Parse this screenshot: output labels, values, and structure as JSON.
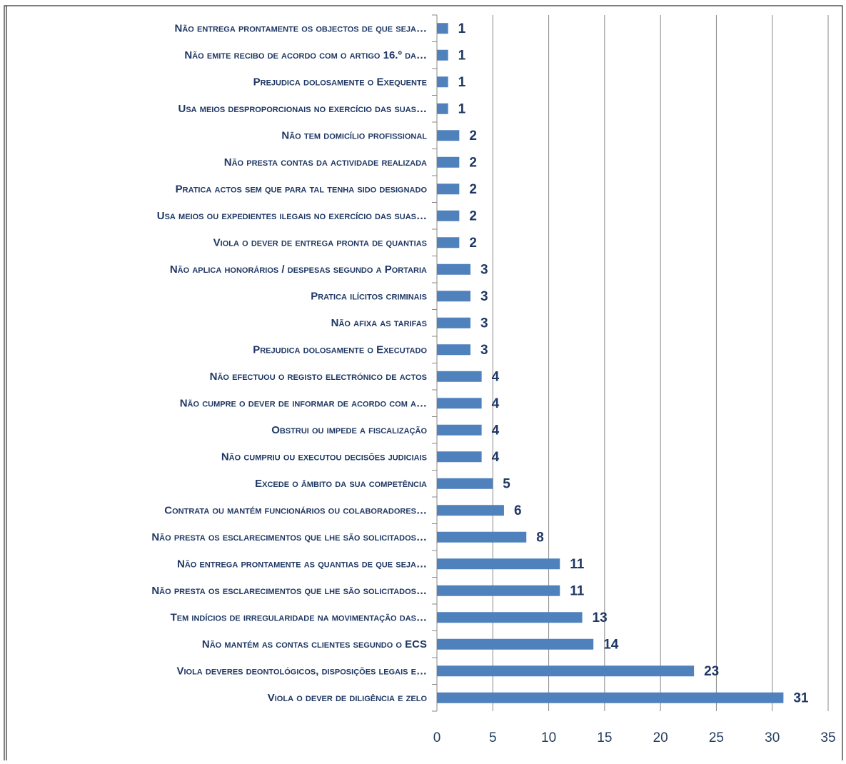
{
  "chart_data": {
    "type": "bar",
    "orientation": "horizontal",
    "categories": [
      "Não entrega prontamente os objectos de que seja…",
      "Não emite recibo de acordo com o  artigo 16.º da…",
      "Prejudica dolosamente o Exequente",
      "Usa meios desproporcionais no exercício das suas…",
      "Não tem domicílio profissional",
      "Não presta contas da actividade realizada",
      "Pratica actos sem que para tal tenha sido designado",
      "Usa meios ou expedientes ilegais no exercício das suas…",
      "Viola o dever de entrega pronta de quantias",
      "Não aplica honorários / despesas segundo a Portaria",
      "Pratica ilícitos criminais",
      "Não afixa as tarifas",
      "Prejudica dolosamente o Executado",
      "Não efectuou o registo electrónico de actos",
      "Não cumpre o dever de informar de acordo com a…",
      "Obstrui ou impede a fiscalização",
      "Não cumpriu ou executou decisões judiciais",
      "Excede o âmbito da sua competência",
      "Contrata ou mantém funcionários ou colaboradores…",
      "Não presta os esclarecimentos que lhe são solicitados…",
      "Não entrega prontamente as quantias de que seja…",
      "Não presta os esclarecimentos que lhe são solicitados…",
      "Tem indícios de irregularidade na movimentação das…",
      "Não mantém as contas clientes segundo o ECS",
      "Viola deveres deontológicos, disposições legais e…",
      "Viola o dever de diligência e zelo"
    ],
    "values": [
      1,
      1,
      1,
      1,
      2,
      2,
      2,
      2,
      2,
      3,
      3,
      3,
      3,
      4,
      4,
      4,
      4,
      5,
      6,
      8,
      11,
      11,
      13,
      14,
      23,
      31
    ],
    "color": "#4f81bd",
    "xlim": [
      0,
      35
    ],
    "xticks": [
      0,
      5,
      10,
      15,
      20,
      25,
      30,
      35
    ],
    "grid": true
  }
}
